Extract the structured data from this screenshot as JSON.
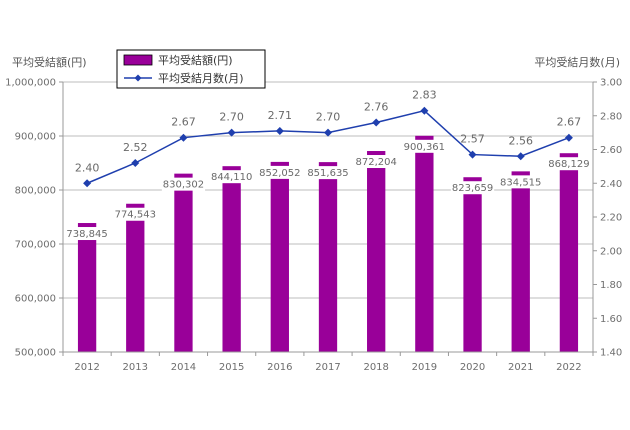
{
  "chart_data": {
    "type": "bar",
    "categories": [
      "2012",
      "2013",
      "2014",
      "2015",
      "2016",
      "2017",
      "2018",
      "2019",
      "2020",
      "2021",
      "2022"
    ],
    "series": [
      {
        "name": "平均受結額(円)",
        "type": "bar",
        "axis": "left",
        "values": [
          738845,
          774543,
          830302,
          844110,
          852052,
          851635,
          872204,
          900361,
          823659,
          834515,
          868129
        ],
        "labels": [
          "738,845",
          "774,543",
          "830,302",
          "844,110",
          "852,052",
          "851,635",
          "872,204",
          "900,361",
          "823,659",
          "834,515",
          "868,129"
        ],
        "color": "#990099"
      },
      {
        "name": "平均受結月数(月)",
        "type": "line",
        "axis": "right",
        "values": [
          2.4,
          2.52,
          2.67,
          2.7,
          2.71,
          2.7,
          2.76,
          2.83,
          2.57,
          2.56,
          2.67
        ],
        "labels": [
          "2.40",
          "2.52",
          "2.67",
          "2.70",
          "2.71",
          "2.70",
          "2.76",
          "2.83",
          "2.57",
          "2.56",
          "2.67"
        ],
        "color": "#1f3fae"
      }
    ],
    "left_axis": {
      "title": "平均受結額(円)",
      "ylim": [
        500000,
        1000000
      ],
      "ticks": [
        500000,
        600000,
        700000,
        800000,
        900000,
        1000000
      ],
      "tick_labels": [
        "500,000",
        "600,000",
        "700,000",
        "800,000",
        "900,000",
        "1,000,000"
      ]
    },
    "right_axis": {
      "title": "平均受結月数(月)",
      "ylim": [
        1.4,
        3.0
      ],
      "ticks": [
        1.4,
        1.6,
        1.8,
        2.0,
        2.2,
        2.4,
        2.6,
        2.8,
        3.0
      ],
      "tick_labels": [
        "1.40",
        "1.60",
        "1.80",
        "2.00",
        "2.20",
        "2.40",
        "2.60",
        "2.80",
        "3.00"
      ]
    },
    "grid": true,
    "legend": "top-left"
  }
}
